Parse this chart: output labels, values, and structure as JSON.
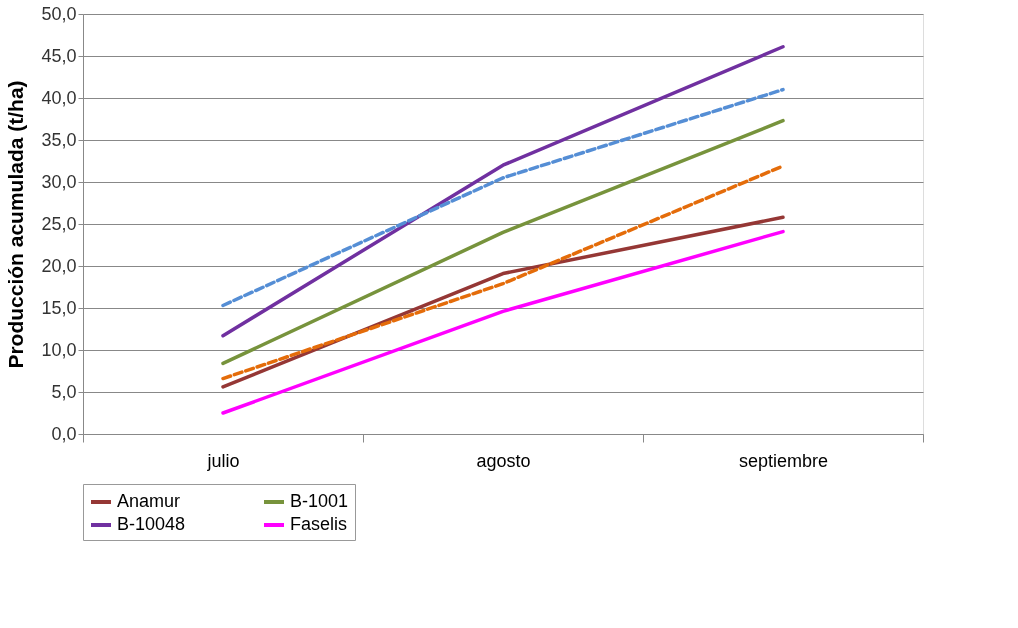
{
  "chart_data": {
    "type": "line",
    "ylabel": "Producción acumulada (t/ha)",
    "categories": [
      "julio",
      "agosto",
      "septiembre"
    ],
    "series": [
      {
        "name": "Anamur",
        "color": "#953735",
        "values": [
          5.6,
          19.1,
          25.8
        ]
      },
      {
        "name": "B-1001",
        "color": "#77933c",
        "values": [
          8.4,
          24.0,
          37.3
        ]
      },
      {
        "name": "B-10048",
        "color": "#7030a0",
        "values": [
          11.7,
          32.0,
          46.1
        ]
      },
      {
        "name": "Faselis",
        "color": "#ff00ff",
        "values": [
          2.5,
          14.6,
          24.1
        ]
      },
      {
        "color": "#558ed5",
        "line_style": "dashed",
        "values": [
          15.3,
          30.5,
          41.0
        ]
      },
      {
        "color": "#e46c0a",
        "line_style": "dashed",
        "values": [
          6.6,
          17.9,
          31.9
        ]
      }
    ],
    "ylim": [
      0,
      50
    ],
    "yticks": [
      {
        "value": 0,
        "label": "0,0"
      },
      {
        "value": 5,
        "label": "5,0"
      },
      {
        "value": 10,
        "label": "10,0"
      },
      {
        "value": 15,
        "label": "15,0"
      },
      {
        "value": 20,
        "label": "20,0"
      },
      {
        "value": 25,
        "label": "25,0"
      },
      {
        "value": 30,
        "label": "30,0"
      },
      {
        "value": 35,
        "label": "35,0"
      },
      {
        "value": 40,
        "label": "40,0"
      },
      {
        "value": 45,
        "label": "45,0"
      },
      {
        "value": 50,
        "label": "50,0"
      }
    ],
    "grid": "y",
    "legend": "bottom",
    "line_style": "solid"
  }
}
